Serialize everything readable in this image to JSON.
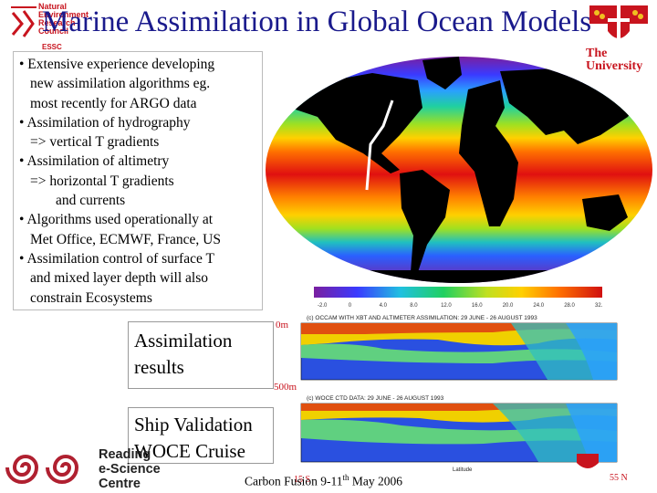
{
  "title": "Marine Assimilation in Global Ocean Models",
  "nerc": {
    "lines": [
      "Natural",
      "Environment",
      "Research",
      "Council"
    ],
    "subtitle": "ESSC"
  },
  "university": {
    "line1": "The",
    "line2": "University"
  },
  "bullets": [
    {
      "text": "• Extensive experience developing",
      "indent": 0
    },
    {
      "text": "new assimilation algorithms eg.",
      "indent": 1
    },
    {
      "text": "most recently for ARGO data",
      "indent": 1
    },
    {
      "text": "• Assimilation of hydrography",
      "indent": 0
    },
    {
      "text": "=> vertical T gradients",
      "indent": 1
    },
    {
      "text": "• Assimilation of altimetry",
      "indent": 0
    },
    {
      "text": "=> horizontal T gradients",
      "indent": 1
    },
    {
      "text": "and currents",
      "indent": 2
    },
    {
      "text": "• Algorithms used operationally at",
      "indent": 0
    },
    {
      "text": "Met Office, ECMWF, France, US",
      "indent": 1
    },
    {
      "text": "• Assimilation control of surface T",
      "indent": 0
    },
    {
      "text": "and mixed layer depth will also",
      "indent": 1
    },
    {
      "text": "constrain Ecosystems",
      "indent": 1
    }
  ],
  "colorbar_ticks": [
    "-2.0",
    "0",
    "4.0",
    "8.0",
    "12.0",
    "16.0",
    "20.0",
    "24.0",
    "28.0",
    "32.0"
  ],
  "section1": {
    "label_lines": [
      "Assimilation",
      "results"
    ],
    "plot_title": "(c) OCCAM WITH XBT AND ALTIMETER ASSIMILATION: 29 JUNE - 26 AUGUST 1993"
  },
  "section2": {
    "label_lines": [
      "Ship Validation",
      "WOCE Cruise"
    ],
    "plot_title": "(c) WOCE CTD DATA: 29 JUNE - 26 AUGUST 1993"
  },
  "depth_top": "0m",
  "depth_bottom": "500m",
  "lat_start": "15 S",
  "lat_end": "55 N",
  "latitude_label": "Latitude",
  "footer": {
    "main": "Carbon Fusion 9-11",
    "sup": "th",
    "rest": " May 2006"
  },
  "reading": {
    "lines": [
      "Reading",
      "e-Science",
      "Centre"
    ]
  },
  "colors": {
    "title": "#1a1a8c",
    "accent_red": "#c8141e"
  }
}
